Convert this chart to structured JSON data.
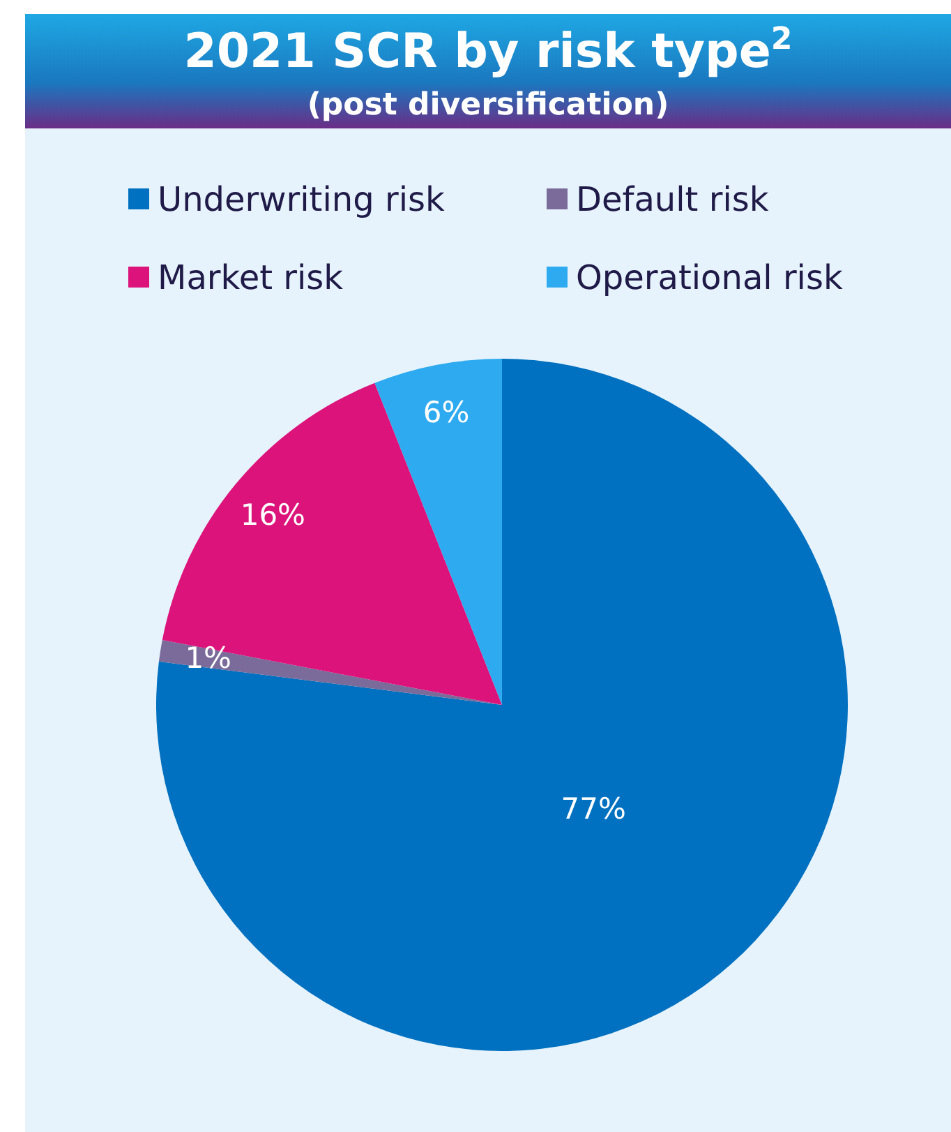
{
  "chart_data": {
    "type": "pie",
    "title": "2021 SCR by risk type$^{2}$",
    "subtitle": "(post diversification)",
    "categories": [
      "Underwriting risk",
      "Default risk",
      "Market risk",
      "Operational risk"
    ],
    "values": [
      77,
      1,
      16,
      6
    ],
    "colors": [
      "#0070c0",
      "#7a6b9a",
      "#dc137a",
      "#2eaaf0"
    ],
    "value_labels": [
      "77%",
      "1%",
      "16%",
      "6%"
    ],
    "legend": "top"
  }
}
